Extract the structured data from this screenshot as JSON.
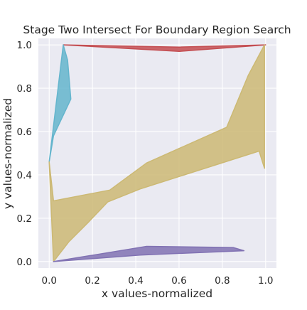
{
  "chart_data": {
    "type": "area",
    "title": "Stage Two Intersect For Boundary Region Search",
    "xlabel": "x values-normalized",
    "ylabel": "y values-normalized",
    "xlim": [
      -0.05,
      1.05
    ],
    "ylim": [
      -0.03,
      1.03
    ],
    "xticks": [
      0.0,
      0.2,
      0.4,
      0.6,
      0.8,
      1.0
    ],
    "xtick_labels": [
      "0.0",
      "0.2",
      "0.4",
      "0.6",
      "0.8",
      "1.0"
    ],
    "yticks": [
      0.0,
      0.2,
      0.4,
      0.6,
      0.8,
      1.0
    ],
    "ytick_labels": [
      "0.0",
      "0.2",
      "0.4",
      "0.6",
      "0.8",
      "1.0"
    ],
    "grid": true,
    "background": "#eaeaf2",
    "series": [
      {
        "color": "#c44e52",
        "polygon": [
          [
            0.065,
            1.0
          ],
          [
            0.6,
            0.97
          ],
          [
            1.0,
            1.0
          ],
          [
            0.6,
            0.99
          ]
        ]
      },
      {
        "color": "#64b5cd",
        "polygon": [
          [
            0.0,
            0.46
          ],
          [
            0.065,
            1.0
          ],
          [
            0.085,
            0.93
          ],
          [
            0.1,
            0.75
          ],
          [
            0.02,
            0.58
          ]
        ]
      },
      {
        "color": "#ccb974",
        "polygon": [
          [
            0.0,
            0.46
          ],
          [
            0.02,
            0.28
          ],
          [
            0.28,
            0.33
          ],
          [
            0.45,
            0.455
          ],
          [
            0.82,
            0.62
          ],
          [
            0.92,
            0.86
          ],
          [
            0.995,
            1.0
          ],
          [
            0.995,
            0.43
          ],
          [
            0.97,
            0.51
          ],
          [
            0.42,
            0.335
          ],
          [
            0.27,
            0.275
          ],
          [
            0.18,
            0.18
          ],
          [
            0.09,
            0.09
          ],
          [
            0.02,
            0.0
          ]
        ]
      },
      {
        "color": "#8172b3",
        "polygon": [
          [
            0.02,
            0.0
          ],
          [
            0.45,
            0.07
          ],
          [
            0.85,
            0.065
          ],
          [
            0.9,
            0.05
          ],
          [
            0.42,
            0.03
          ]
        ]
      }
    ]
  }
}
